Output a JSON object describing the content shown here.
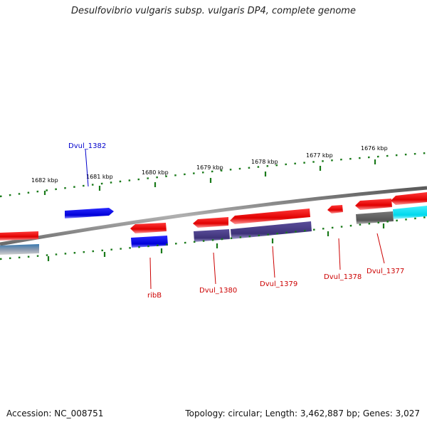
{
  "title": "Desulfovibrio vulgaris subsp. vulgaris DP4, complete genome",
  "footer": {
    "accession": "Accession: NC_008751",
    "summary": "Topology: circular; Length: 3,462,887 bp; Genes: 3,027"
  },
  "scale_labels": [
    "1682 kbp",
    "1681 kbp",
    "1680 kbp",
    "1679 kbp",
    "1678 kbp",
    "1677 kbp",
    "1676 kbp"
  ],
  "gene_labels": [
    {
      "text": "Dvul_1382",
      "color": "#0000cc"
    },
    {
      "text": "ribB",
      "color": "#cc0000"
    },
    {
      "text": "Dvul_1380",
      "color": "#cc0000"
    },
    {
      "text": "Dvul_1379",
      "color": "#cc0000"
    },
    {
      "text": "Dvul_1378",
      "color": "#cc0000"
    },
    {
      "text": "Dvul_1377",
      "color": "#cc0000"
    }
  ],
  "colors": {
    "forward_cds": "#1010e0",
    "reverse_cds": "#e01010",
    "cog_purple": "#4a3d8a",
    "cog_blue": "#1010e0",
    "cog_gray": "#666666",
    "cog_cyan": "#00e0f0",
    "tick_green": "#1a7a1a",
    "backbone": "#8a8a8a"
  }
}
